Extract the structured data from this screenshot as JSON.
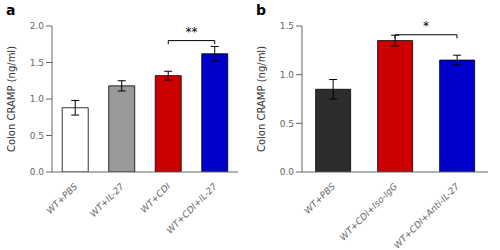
{
  "chart_data": [
    {
      "type": "bar",
      "title": "a",
      "categories": [
        "WT+PBS",
        "WT+IL-27",
        "WT+CDI",
        "WT+CDI+IL-27"
      ],
      "values": [
        0.88,
        1.18,
        1.32,
        1.62
      ],
      "errors": [
        0.1,
        0.07,
        0.06,
        0.1
      ],
      "colors": [
        "#ffffff",
        "#999999",
        "#cc0000",
        "#0000cc"
      ],
      "ylabel": "Colon CRAMP (ng/ml)",
      "ylim": [
        0,
        2.0
      ],
      "yticks": [
        {
          "value": 0,
          "label": "0.0"
        },
        0.5,
        {
          "value": 1.0,
          "label": "1.0"
        },
        1.5,
        {
          "value": 2.0,
          "label": "2.0"
        }
      ],
      "annotations": [
        {
          "text": "**",
          "x1": "WT+CDI",
          "x2": "WT+CDI+IL-27",
          "y": 1.8
        }
      ],
      "grid": false
    },
    {
      "type": "bar",
      "title": "b",
      "categories": [
        "WT+PBS",
        "WT+CDI+Iso-IgG",
        "WT+CDI+Anti-IL-27"
      ],
      "values": [
        0.85,
        1.35,
        1.15
      ],
      "errors": [
        0.1,
        0.055,
        0.05
      ],
      "colors": [
        "#2d2d2d",
        "#cc0000",
        "#0000cc"
      ],
      "ylabel": "Colon CRAMP (ng/ml)",
      "ylim": [
        0,
        1.5
      ],
      "yticks": [
        {
          "value": 0.0,
          "label": "0.0"
        },
        0.5,
        {
          "value": 1.0,
          "label": "1.0"
        },
        1.5
      ],
      "annotations": [
        {
          "text": "*",
          "x1": "WT+CDI+Iso-IgG",
          "x2": "WT+CDI+Anti-IL-27",
          "y": 1.41
        }
      ],
      "grid": false
    }
  ]
}
